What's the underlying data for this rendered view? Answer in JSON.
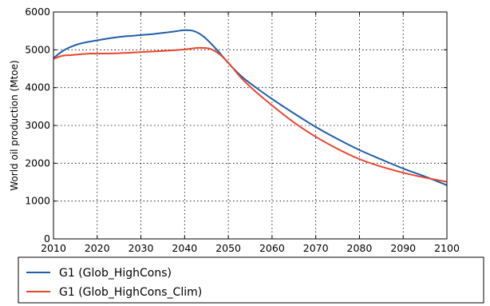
{
  "chart_data": {
    "type": "line",
    "title": "",
    "xlabel": "",
    "ylabel": "World oil production (Mtoe)",
    "xlim": [
      2010,
      2100
    ],
    "ylim": [
      0,
      6000
    ],
    "xticks": [
      2010,
      2020,
      2030,
      2040,
      2050,
      2060,
      2070,
      2080,
      2090,
      2100
    ],
    "yticks": [
      0,
      1000,
      2000,
      3000,
      4000,
      5000,
      6000
    ],
    "grid": true,
    "legend_position": "below plot",
    "series": [
      {
        "name": "G1 (Glob_HighCons)",
        "color": "#1f5fa6",
        "x": [
          2010,
          2012,
          2014,
          2016,
          2018,
          2020,
          2022,
          2025,
          2028,
          2030,
          2033,
          2036,
          2038,
          2040,
          2042,
          2044,
          2046,
          2048,
          2050,
          2053,
          2056,
          2060,
          2065,
          2070,
          2075,
          2080,
          2085,
          2090,
          2095,
          2100
        ],
        "values": [
          4780,
          4960,
          5080,
          5160,
          5210,
          5250,
          5290,
          5340,
          5370,
          5390,
          5420,
          5460,
          5490,
          5520,
          5500,
          5380,
          5170,
          4920,
          4650,
          4300,
          4030,
          3700,
          3320,
          2960,
          2640,
          2350,
          2100,
          1860,
          1650,
          1420
        ]
      },
      {
        "name": "G1 (Glob_HighCons_Clim)",
        "color": "#e8452e",
        "x": [
          2010,
          2012,
          2014,
          2016,
          2018,
          2020,
          2025,
          2030,
          2035,
          2040,
          2042,
          2044,
          2046,
          2048,
          2050,
          2053,
          2056,
          2060,
          2065,
          2070,
          2075,
          2080,
          2085,
          2090,
          2095,
          2100
        ],
        "values": [
          4760,
          4840,
          4860,
          4880,
          4900,
          4900,
          4910,
          4940,
          4970,
          5010,
          5040,
          5050,
          5020,
          4880,
          4660,
          4250,
          3920,
          3530,
          3080,
          2700,
          2380,
          2110,
          1910,
          1750,
          1620,
          1510
        ]
      }
    ]
  }
}
